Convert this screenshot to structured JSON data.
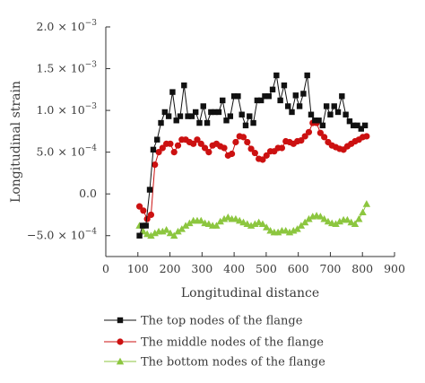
{
  "chart_data": {
    "type": "line",
    "xlabel": "Longitudinal distance",
    "ylabel": "Longitudinal strain",
    "xlim": [
      0,
      900
    ],
    "ylim": [
      -0.00075,
      0.002
    ],
    "x_ticks": [
      0,
      100,
      200,
      300,
      400,
      500,
      600,
      700,
      800,
      900
    ],
    "y_ticks": [
      {
        "value": 0.002,
        "mantissa": "2.0",
        "exp": "-3"
      },
      {
        "value": 0.0015,
        "mantissa": "1.5",
        "exp": "-3"
      },
      {
        "value": 0.001,
        "mantissa": "1.0",
        "exp": "-3"
      },
      {
        "value": 0.0005,
        "mantissa": "5.0",
        "exp": "-4"
      },
      {
        "value": 0.0,
        "mantissa": "0.0",
        "exp": ""
      },
      {
        "value": -0.0005,
        "mantissa": "−5.0",
        "exp": "-4"
      }
    ],
    "grid": false,
    "legend_position": "bottom",
    "series": [
      {
        "name": "The top nodes of the flange",
        "color": "#111111",
        "marker": "square",
        "x": [
          105,
          115,
          125,
          137,
          148,
          160,
          172,
          184,
          196,
          208,
          220,
          232,
          244,
          256,
          268,
          280,
          292,
          304,
          316,
          328,
          340,
          352,
          364,
          376,
          388,
          400,
          412,
          424,
          436,
          448,
          460,
          472,
          484,
          496,
          508,
          520,
          532,
          544,
          556,
          568,
          580,
          592,
          604,
          616,
          628,
          640,
          652,
          664,
          676,
          688,
          700,
          712,
          724,
          736,
          748,
          760,
          772,
          784,
          796,
          808
        ],
        "y": [
          -0.0005,
          -0.00038,
          -0.00038,
          5e-05,
          0.00053,
          0.00065,
          0.00085,
          0.00098,
          0.00093,
          0.00122,
          0.00088,
          0.00093,
          0.0013,
          0.00093,
          0.00093,
          0.00098,
          0.00085,
          0.00105,
          0.00085,
          0.00098,
          0.00098,
          0.00098,
          0.00112,
          0.00088,
          0.00093,
          0.00117,
          0.00117,
          0.00095,
          0.00082,
          0.00093,
          0.00085,
          0.00112,
          0.00112,
          0.00117,
          0.00117,
          0.00125,
          0.00142,
          0.00112,
          0.0013,
          0.00105,
          0.00098,
          0.00118,
          0.00105,
          0.0012,
          0.00142,
          0.00095,
          0.00088,
          0.00088,
          0.00082,
          0.00105,
          0.00095,
          0.00105,
          0.00098,
          0.00117,
          0.00095,
          0.00087,
          0.00082,
          0.00082,
          0.00078,
          0.00082
        ]
      },
      {
        "name": "The middle nodes of the flange",
        "color": "#cc1111",
        "marker": "circle",
        "x": [
          105,
          117,
          129,
          141,
          153,
          165,
          177,
          189,
          201,
          213,
          225,
          237,
          249,
          261,
          273,
          285,
          297,
          309,
          321,
          333,
          345,
          357,
          369,
          381,
          393,
          405,
          417,
          429,
          441,
          453,
          465,
          477,
          489,
          501,
          513,
          525,
          537,
          549,
          561,
          573,
          585,
          597,
          609,
          621,
          633,
          645,
          657,
          669,
          681,
          693,
          705,
          717,
          729,
          741,
          753,
          765,
          777,
          789,
          801,
          813
        ],
        "y": [
          -0.00015,
          -0.0002,
          -0.0003,
          -0.00025,
          0.00035,
          0.0005,
          0.00055,
          0.0006,
          0.0006,
          0.0005,
          0.00058,
          0.00065,
          0.00065,
          0.00062,
          0.0006,
          0.00065,
          0.0006,
          0.00055,
          0.0005,
          0.00058,
          0.0006,
          0.00057,
          0.00055,
          0.00046,
          0.00048,
          0.00062,
          0.00069,
          0.00068,
          0.00062,
          0.00054,
          0.00049,
          0.00042,
          0.00041,
          0.00046,
          0.00051,
          0.00051,
          0.00055,
          0.00055,
          0.00063,
          0.00062,
          0.0006,
          0.00063,
          0.00064,
          0.00069,
          0.00074,
          0.00085,
          0.00085,
          0.00073,
          0.00068,
          0.00062,
          0.00058,
          0.00056,
          0.00054,
          0.00053,
          0.00057,
          0.0006,
          0.00063,
          0.00065,
          0.00068,
          0.00069
        ]
      },
      {
        "name": "The bottom nodes of the flange",
        "color": "#8cc63f",
        "marker": "triangle",
        "x": [
          105,
          117,
          129,
          141,
          153,
          165,
          177,
          189,
          201,
          213,
          225,
          237,
          249,
          261,
          273,
          285,
          297,
          309,
          321,
          333,
          345,
          357,
          369,
          381,
          393,
          405,
          417,
          429,
          441,
          453,
          465,
          477,
          489,
          501,
          513,
          525,
          537,
          549,
          561,
          573,
          585,
          597,
          609,
          621,
          633,
          645,
          657,
          669,
          681,
          693,
          705,
          717,
          729,
          741,
          753,
          765,
          777,
          789,
          801,
          813
        ],
        "y": [
          -0.00038,
          -0.00045,
          -0.00048,
          -0.0005,
          -0.00047,
          -0.00045,
          -0.00045,
          -0.00043,
          -0.00047,
          -0.0005,
          -0.00045,
          -0.00042,
          -0.00038,
          -0.00035,
          -0.00032,
          -0.00032,
          -0.00032,
          -0.00035,
          -0.00036,
          -0.00038,
          -0.00038,
          -0.00033,
          -0.0003,
          -0.00028,
          -0.0003,
          -0.0003,
          -0.00032,
          -0.00034,
          -0.00036,
          -0.00038,
          -0.00036,
          -0.00034,
          -0.00036,
          -0.0004,
          -0.00044,
          -0.00046,
          -0.00046,
          -0.00044,
          -0.00044,
          -0.00046,
          -0.00044,
          -0.00042,
          -0.00038,
          -0.00034,
          -0.0003,
          -0.00027,
          -0.00026,
          -0.00027,
          -0.0003,
          -0.00033,
          -0.00035,
          -0.00036,
          -0.00033,
          -0.00031,
          -0.00031,
          -0.00034,
          -0.00036,
          -0.0003,
          -0.00022,
          -0.00012
        ]
      }
    ]
  }
}
